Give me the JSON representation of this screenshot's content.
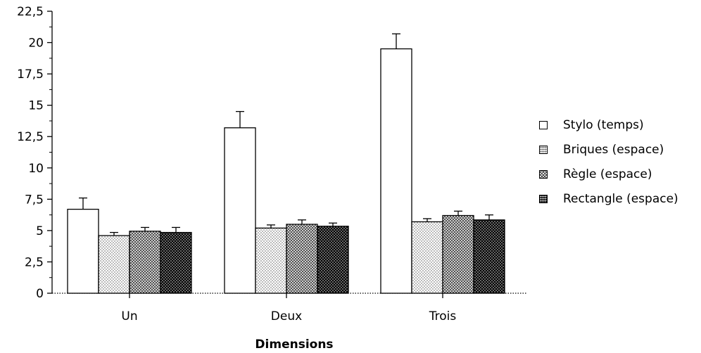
{
  "chart_data": {
    "type": "bar",
    "title": "",
    "xlabel": "Dimensions",
    "ylabel": "",
    "categories": [
      "Un",
      "Deux",
      "Trois"
    ],
    "ylim": [
      0,
      22.5
    ],
    "yticks": [
      "0",
      "2,5",
      "5",
      "7,5",
      "10",
      "12,5",
      "15",
      "17,5",
      "20",
      "22,5"
    ],
    "yticks_values": [
      0,
      2.5,
      5,
      7.5,
      10,
      12.5,
      15,
      17.5,
      20,
      22.5
    ],
    "grid": false,
    "legend_position": "right",
    "error_bars": true,
    "series": [
      {
        "name": "Stylo (temps)",
        "pattern": "white",
        "values": [
          6.7,
          13.2,
          19.5
        ],
        "errors": [
          0.9,
          1.3,
          1.2
        ]
      },
      {
        "name": "Briques (espace)",
        "pattern": "light-dots",
        "values": [
          4.6,
          5.2,
          5.7
        ],
        "errors": [
          0.25,
          0.25,
          0.25
        ]
      },
      {
        "name": "Règle (espace)",
        "pattern": "crosshatch",
        "values": [
          4.95,
          5.5,
          6.2
        ],
        "errors": [
          0.3,
          0.35,
          0.35
        ]
      },
      {
        "name": "Rectangle (espace)",
        "pattern": "dark-dots",
        "values": [
          4.85,
          5.35,
          5.85
        ],
        "errors": [
          0.4,
          0.25,
          0.4
        ]
      }
    ]
  }
}
